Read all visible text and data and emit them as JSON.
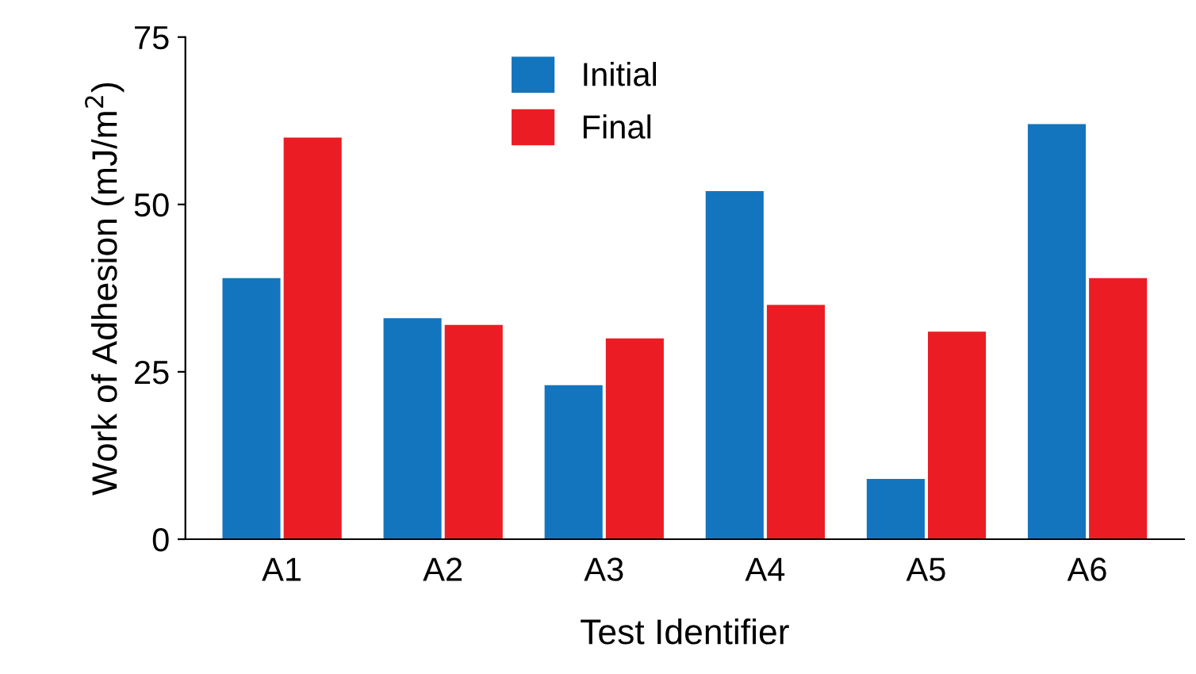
{
  "chart_data": {
    "type": "bar",
    "xlabel": "Test Identifier",
    "ylabel": "Work of Adhesion (mJ/m$^{2}$)",
    "categories": [
      "A1",
      "A2",
      "A3",
      "A4",
      "A5",
      "A6"
    ],
    "series": [
      {
        "name": "Initial",
        "color": "#1375be",
        "values": [
          39,
          33,
          23,
          52,
          9,
          62
        ]
      },
      {
        "name": "Final",
        "color": "#ec1c24",
        "values": [
          60,
          32,
          30,
          35,
          31,
          39
        ]
      }
    ],
    "ylim": [
      0,
      75
    ],
    "yticks": [
      0,
      25,
      50,
      75
    ],
    "grid": false,
    "legend": "top"
  }
}
